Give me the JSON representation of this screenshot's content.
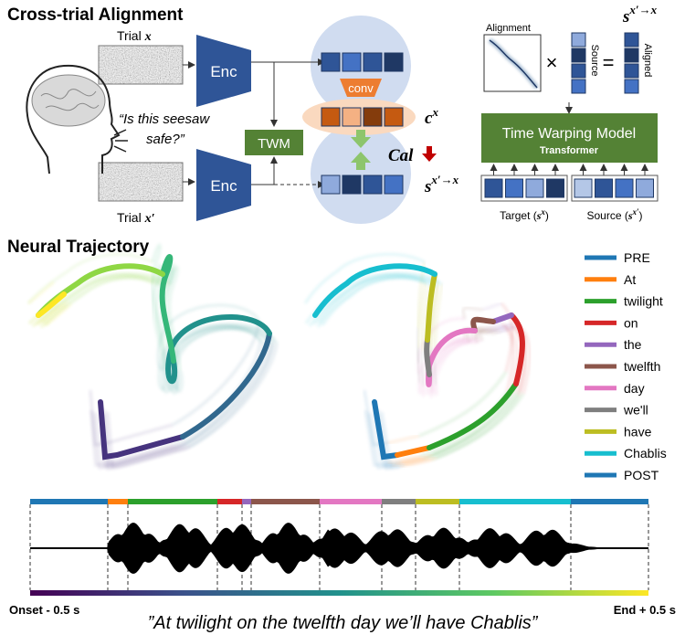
{
  "title_alignment": "Cross-trial Alignment",
  "trial_top": {
    "label": "Trial",
    "var": "x"
  },
  "trial_bottom": {
    "label": "Trial",
    "var": "x′"
  },
  "encoder": "Enc",
  "quote": [
    "“Is this seesaw",
    "safe?”"
  ],
  "twm": "TWM",
  "conv": "conv",
  "context": {
    "base": "c",
    "sup": "x"
  },
  "calibration": "Cal",
  "aligned_signal": {
    "base": "s",
    "sup": "x′→x"
  },
  "inset": {
    "alignment": "Alignment",
    "times": "×",
    "equals": "=",
    "source": "Source",
    "aligned": "Aligned",
    "output": {
      "base": "s",
      "sup": "x′→x"
    },
    "model": "Time Warping Model",
    "model_sub": "Transformer",
    "target_label": {
      "text": "Target (",
      "base": "s",
      "sup": "x",
      "close": ")"
    },
    "source_label": {
      "text": "Source (",
      "base": "s",
      "sup": "x′",
      "close": ")"
    }
  },
  "title_trajectory": "Neural Trajectory",
  "legend": [
    {
      "name": "PRE",
      "color": "#1f77b4"
    },
    {
      "name": "At",
      "color": "#ff7f0e"
    },
    {
      "name": "twilight",
      "color": "#2ca02c"
    },
    {
      "name": "on",
      "color": "#d62728"
    },
    {
      "name": "the",
      "color": "#9467bd"
    },
    {
      "name": "twelfth",
      "color": "#8c564b"
    },
    {
      "name": "day",
      "color": "#e377c2"
    },
    {
      "name": "we'll",
      "color": "#7f7f7f"
    },
    {
      "name": "have",
      "color": "#bcbd22"
    },
    {
      "name": "Chablis",
      "color": "#17becf"
    },
    {
      "name": "POST",
      "color": "#1f77b4"
    }
  ],
  "timeline": {
    "start": "Onset - 0.5 s",
    "end": "End + 0.5 s",
    "sentence": "”At twilight on the twelfth day we’ll have Chablis”"
  }
}
